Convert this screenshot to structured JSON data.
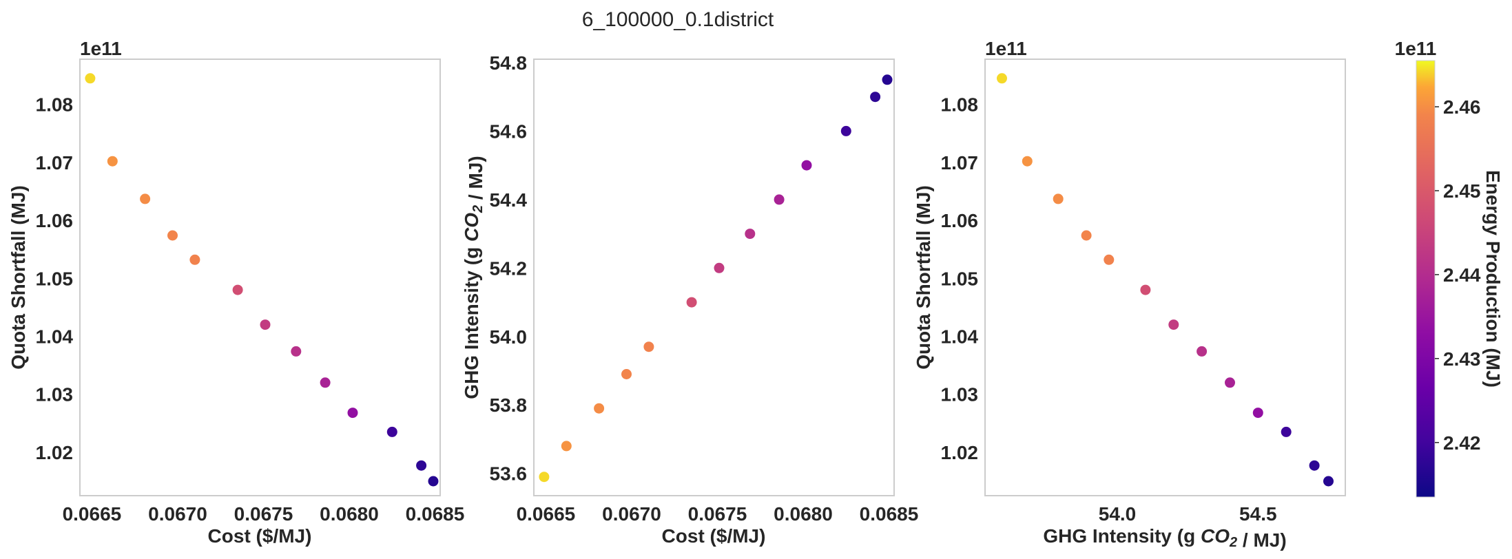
{
  "figure": {
    "title": "6_100000_0.1district"
  },
  "colors": {
    "colormap": "plasma",
    "frame": "#cccccc",
    "text": "#262626"
  },
  "chart_data": [
    {
      "type": "scatter",
      "xlabel": "Cost ($/MJ)",
      "ylabel": "Quota Shortfall (MJ)",
      "y_offset_label": "1e11",
      "xlim": [
        0.06643,
        0.06853
      ],
      "ylim": [
        1.0125,
        1.0878
      ],
      "xticks": [
        0.0665,
        0.067,
        0.0675,
        0.068,
        0.0685
      ],
      "xtick_labels": [
        "0.0665",
        "0.0670",
        "0.0675",
        "0.0680",
        "0.0685"
      ],
      "yticks": [
        1.02,
        1.03,
        1.04,
        1.05,
        1.06,
        1.07,
        1.08
      ],
      "ytick_labels": [
        "1.02",
        "1.03",
        "1.04",
        "1.05",
        "1.06",
        "1.07",
        "1.08"
      ],
      "grid": false,
      "x": [
        0.06649,
        0.06662,
        0.06681,
        0.06697,
        0.0671,
        0.06735,
        0.06751,
        0.06769,
        0.06786,
        0.06802,
        0.06825,
        0.06842,
        0.06849
      ],
      "y": [
        1.0845,
        1.0702,
        1.0637,
        1.0574,
        1.0532,
        1.048,
        1.042,
        1.0374,
        1.032,
        1.0268,
        1.0235,
        1.0177,
        1.015
      ],
      "color_value": [
        2.4643,
        2.4605,
        2.4598,
        2.459,
        2.4585,
        2.4475,
        2.4435,
        2.441,
        2.4378,
        2.4335,
        2.4195,
        2.4175,
        2.4165
      ]
    },
    {
      "type": "scatter",
      "xlabel": "Cost ($/MJ)",
      "ylabel": "GHG Intensity (g CO2 / MJ)",
      "xlim": [
        0.06643,
        0.06853
      ],
      "ylim": [
        53.535,
        54.81
      ],
      "xticks": [
        0.0665,
        0.067,
        0.0675,
        0.068,
        0.0685
      ],
      "xtick_labels": [
        "0.0665",
        "0.0670",
        "0.0675",
        "0.0680",
        "0.0685"
      ],
      "yticks": [
        53.6,
        53.8,
        54.0,
        54.2,
        54.4,
        54.6,
        54.8
      ],
      "ytick_labels": [
        "53.6",
        "53.8",
        "54.0",
        "54.2",
        "54.4",
        "54.6",
        "54.8"
      ],
      "grid": false,
      "x": [
        0.06649,
        0.06662,
        0.06681,
        0.06697,
        0.0671,
        0.06735,
        0.06751,
        0.06769,
        0.06786,
        0.06802,
        0.06825,
        0.06842,
        0.06849
      ],
      "y": [
        53.59,
        53.68,
        53.79,
        53.89,
        53.97,
        54.1,
        54.2,
        54.3,
        54.4,
        54.5,
        54.6,
        54.7,
        54.75
      ],
      "color_value": [
        2.4643,
        2.4605,
        2.4598,
        2.459,
        2.4585,
        2.4475,
        2.4435,
        2.441,
        2.4378,
        2.4335,
        2.4195,
        2.4175,
        2.4165
      ]
    },
    {
      "type": "scatter",
      "xlabel": "GHG Intensity (g CO2 / MJ)",
      "ylabel": "Quota Shortfall (MJ)",
      "y_offset_label": "1e11",
      "xlim": [
        53.53,
        54.81
      ],
      "ylim": [
        1.0125,
        1.0878
      ],
      "xticks": [
        54.0,
        54.5
      ],
      "xtick_labels": [
        "54.0",
        "54.5"
      ],
      "yticks": [
        1.02,
        1.03,
        1.04,
        1.05,
        1.06,
        1.07,
        1.08
      ],
      "ytick_labels": [
        "1.02",
        "1.03",
        "1.04",
        "1.05",
        "1.06",
        "1.07",
        "1.08"
      ],
      "grid": false,
      "x": [
        53.59,
        53.68,
        53.79,
        53.89,
        53.97,
        54.1,
        54.2,
        54.3,
        54.4,
        54.5,
        54.6,
        54.7,
        54.75
      ],
      "y": [
        1.0845,
        1.0702,
        1.0637,
        1.0574,
        1.0532,
        1.048,
        1.042,
        1.0374,
        1.032,
        1.0268,
        1.0235,
        1.0177,
        1.015
      ],
      "color_value": [
        2.4643,
        2.4605,
        2.4598,
        2.459,
        2.4585,
        2.4475,
        2.4435,
        2.441,
        2.4378,
        2.4335,
        2.4195,
        2.4175,
        2.4165
      ]
    }
  ],
  "colorbar": {
    "label": "Energy Production (MJ)",
    "offset_label": "1e11",
    "range": [
      2.4135,
      2.4655
    ],
    "ticks": [
      2.42,
      2.43,
      2.44,
      2.45,
      2.46
    ],
    "tick_labels": [
      "2.42",
      "2.43",
      "2.44",
      "2.45",
      "2.46"
    ]
  }
}
